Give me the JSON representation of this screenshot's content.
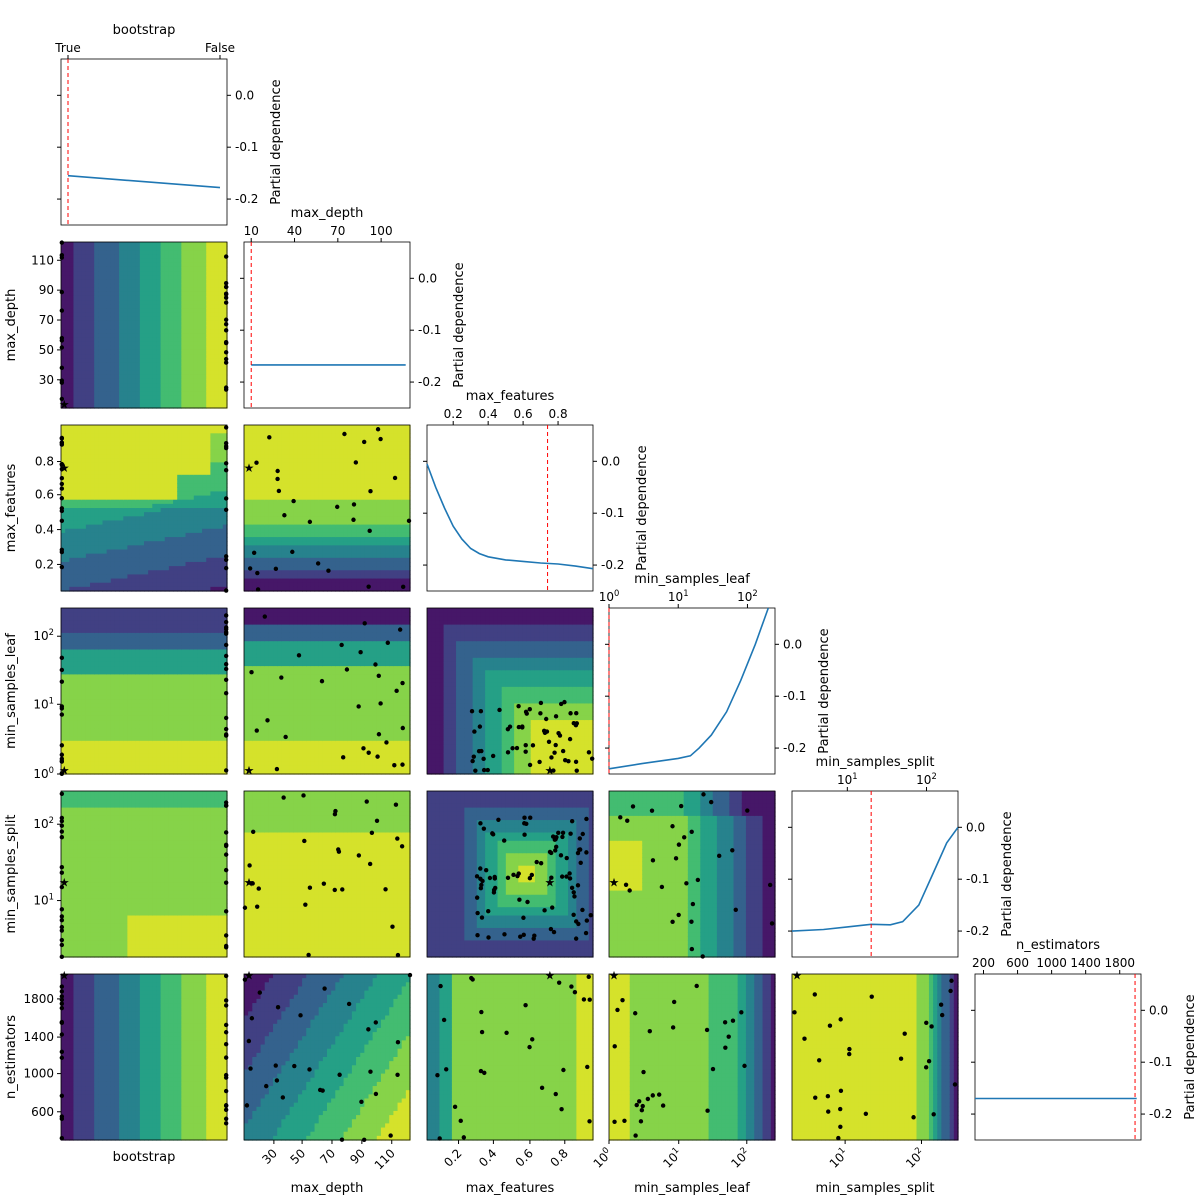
{
  "chart_data": {
    "type": "partial dependence matrix",
    "params": [
      "bootstrap",
      "max_depth",
      "max_features",
      "min_samples_leaf",
      "min_samples_split",
      "n_estimators"
    ],
    "title": "",
    "diagonal_ylabel": "Partial dependence",
    "diagonal_yticks": [
      "0.0",
      "-0.1",
      "-0.2"
    ],
    "diagonal": [
      {
        "param": "bootstrap",
        "scale": "categorical",
        "ticks": [
          "True",
          "False"
        ],
        "ylim": [
          -0.25,
          0.07
        ],
        "best": "True",
        "curve": [
          [
            "True",
            -0.155
          ],
          [
            "False",
            -0.178
          ]
        ]
      },
      {
        "param": "max_depth",
        "scale": "linear",
        "xlim": [
          5,
          120
        ],
        "ticks": [
          "10",
          "40",
          "70",
          "100"
        ],
        "ylim": [
          -0.25,
          0.07
        ],
        "best": 10,
        "curve": [
          [
            10,
            -0.167
          ],
          [
            60,
            -0.167
          ],
          [
            117,
            -0.167
          ]
        ]
      },
      {
        "param": "max_features",
        "scale": "linear",
        "xlim": [
          0.05,
          1.0
        ],
        "ticks": [
          "0.2",
          "0.4",
          "0.6",
          "0.8"
        ],
        "ylim": [
          -0.25,
          0.07
        ],
        "best": 0.74,
        "curve": [
          [
            0.05,
            -0.005
          ],
          [
            0.1,
            -0.05
          ],
          [
            0.15,
            -0.09
          ],
          [
            0.2,
            -0.125
          ],
          [
            0.25,
            -0.15
          ],
          [
            0.3,
            -0.168
          ],
          [
            0.35,
            -0.178
          ],
          [
            0.4,
            -0.184
          ],
          [
            0.5,
            -0.19
          ],
          [
            0.6,
            -0.193
          ],
          [
            0.7,
            -0.196
          ],
          [
            0.8,
            -0.198
          ],
          [
            0.9,
            -0.202
          ],
          [
            1.0,
            -0.207
          ]
        ]
      },
      {
        "param": "min_samples_leaf",
        "scale": "log",
        "xlim": [
          1,
          250
        ],
        "ticks": [
          "10^0",
          "10^1",
          "10^2"
        ],
        "ylim": [
          -0.25,
          0.07
        ],
        "best": 1,
        "curve": [
          [
            1,
            -0.24
          ],
          [
            3,
            -0.23
          ],
          [
            10,
            -0.22
          ],
          [
            15,
            -0.215
          ],
          [
            20,
            -0.2
          ],
          [
            30,
            -0.175
          ],
          [
            50,
            -0.13
          ],
          [
            80,
            -0.07
          ],
          [
            130,
            0.0
          ],
          [
            200,
            0.07
          ]
        ]
      },
      {
        "param": "min_samples_split",
        "scale": "log",
        "xlim": [
          2,
          250
        ],
        "ticks": [
          "10^1",
          "10^2"
        ],
        "ylim": [
          -0.25,
          0.07
        ],
        "best": 20,
        "curve": [
          [
            2,
            -0.2
          ],
          [
            5,
            -0.197
          ],
          [
            10,
            -0.192
          ],
          [
            20,
            -0.187
          ],
          [
            35,
            -0.188
          ],
          [
            50,
            -0.182
          ],
          [
            80,
            -0.15
          ],
          [
            120,
            -0.09
          ],
          [
            180,
            -0.03
          ],
          [
            250,
            0.0
          ]
        ]
      },
      {
        "param": "n_estimators",
        "scale": "linear",
        "xlim": [
          100,
          2050
        ],
        "ticks": [
          "200",
          "600",
          "1000",
          "1400",
          "1800"
        ],
        "ylim": [
          -0.25,
          0.07
        ],
        "best": 1980,
        "curve": [
          [
            100,
            -0.17
          ],
          [
            1000,
            -0.17
          ],
          [
            2000,
            -0.17
          ]
        ]
      }
    ],
    "col_ticks": [
      {
        "param": "bootstrap",
        "ticks": []
      },
      {
        "param": "max_depth",
        "ticks": [
          "30",
          "50",
          "70",
          "90",
          "110"
        ]
      },
      {
        "param": "max_features",
        "ticks": [
          "0.2",
          "0.4",
          "0.6",
          "0.8"
        ]
      },
      {
        "param": "min_samples_leaf",
        "ticks": [
          "10^0",
          "10^1",
          "10^2"
        ]
      },
      {
        "param": "min_samples_split",
        "ticks": [
          "10^1",
          "10^2"
        ]
      }
    ],
    "row_ticks": [
      {
        "param": "max_depth",
        "ticks": [
          "30",
          "50",
          "70",
          "90",
          "110"
        ]
      },
      {
        "param": "max_features",
        "ticks": [
          "0.2",
          "0.4",
          "0.6",
          "0.8"
        ]
      },
      {
        "param": "min_samples_leaf",
        "ticks": [
          "10^0",
          "10^1",
          "10^2"
        ]
      },
      {
        "param": "min_samples_split",
        "ticks": [
          "10^1",
          "10^2"
        ]
      },
      {
        "param": "n_estimators",
        "ticks": [
          "600",
          "1000",
          "1400",
          "1800"
        ]
      }
    ],
    "colormap": "viridis",
    "colormap_stops": [
      "#440154",
      "#472d7b",
      "#3b528b",
      "#2c728e",
      "#21918c",
      "#28ae80",
      "#5ec962",
      "#addc30",
      "#fde725"
    ],
    "best_marker_color": "#ff0000",
    "curve_color": "#1f77b4",
    "sample_point_color": "#000000"
  }
}
